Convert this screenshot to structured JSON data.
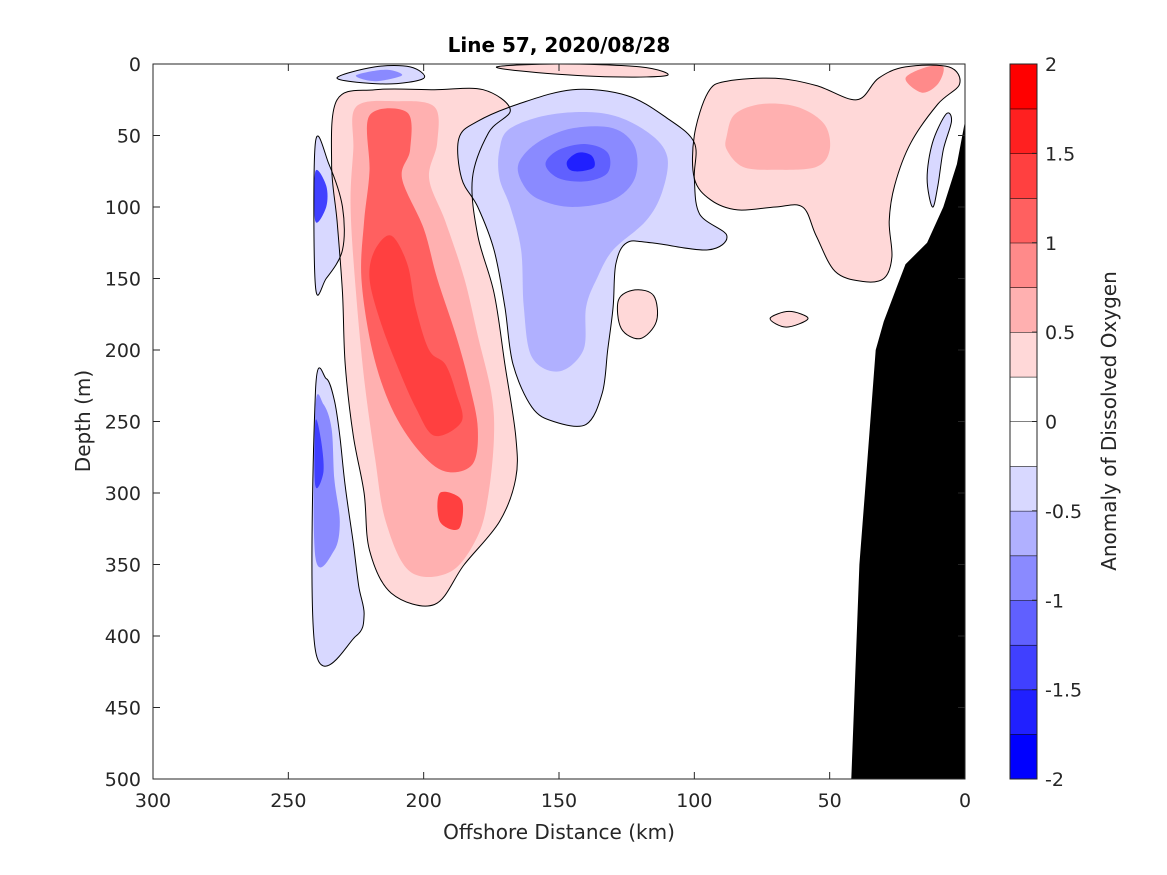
{
  "chart_data": {
    "type": "heatmap",
    "title": "Line 57, 2020/08/28",
    "xlabel": "Offshore Distance (km)",
    "ylabel": "Depth (m)",
    "xlim": [
      300,
      0
    ],
    "ylim": [
      0,
      500
    ],
    "x_ticks": [
      300,
      250,
      200,
      150,
      100,
      50,
      0
    ],
    "y_ticks": [
      0,
      50,
      100,
      150,
      200,
      250,
      300,
      350,
      400,
      450,
      500
    ],
    "colorbar": {
      "label": "Anomaly of Dissolved Oxygen",
      "limits": [
        -2,
        2
      ],
      "tick_values": [
        2,
        1.5,
        1,
        0.5,
        0,
        -0.5,
        -1,
        -1.5,
        -2
      ],
      "tick_labels": [
        "2",
        "1.5",
        "1",
        "0.5",
        "0",
        "-0.5",
        "-1",
        "-1.5",
        "-2"
      ],
      "levels": [
        {
          "lo": -2.0,
          "hi": -1.75,
          "color": "#0000ff"
        },
        {
          "lo": -1.75,
          "hi": -1.5,
          "color": "#2020ff"
        },
        {
          "lo": -1.5,
          "hi": -1.25,
          "color": "#4040ff"
        },
        {
          "lo": -1.25,
          "hi": -1.0,
          "color": "#6060ff"
        },
        {
          "lo": -1.0,
          "hi": -0.75,
          "color": "#8a8aff"
        },
        {
          "lo": -0.75,
          "hi": -0.5,
          "color": "#b0b0ff"
        },
        {
          "lo": -0.5,
          "hi": -0.25,
          "color": "#d8d8ff"
        },
        {
          "lo": -0.25,
          "hi": 0.0,
          "color": "#ffffff"
        },
        {
          "lo": 0.0,
          "hi": 0.25,
          "color": "#ffffff"
        },
        {
          "lo": 0.25,
          "hi": 0.5,
          "color": "#ffd8d8"
        },
        {
          "lo": 0.5,
          "hi": 0.75,
          "color": "#ffb0b0"
        },
        {
          "lo": 0.75,
          "hi": 1.0,
          "color": "#ff8a8a"
        },
        {
          "lo": 1.0,
          "hi": 1.25,
          "color": "#ff6060"
        },
        {
          "lo": 1.25,
          "hi": 1.5,
          "color": "#ff4040"
        },
        {
          "lo": 1.5,
          "hi": 1.75,
          "color": "#ff2020"
        },
        {
          "lo": 1.75,
          "hi": 2.0,
          "color": "#ff0000"
        }
      ]
    },
    "features": [
      {
        "name": "shelf-bathymetry",
        "value": null,
        "color": "#000000",
        "points": [
          [
            0,
            40
          ],
          [
            3,
            70
          ],
          [
            8,
            100
          ],
          [
            14,
            125
          ],
          [
            22,
            140
          ],
          [
            25,
            155
          ],
          [
            30,
            180
          ],
          [
            33,
            200
          ],
          [
            35,
            250
          ],
          [
            37,
            300
          ],
          [
            39,
            350
          ],
          [
            40,
            400
          ],
          [
            41,
            450
          ],
          [
            42,
            500
          ],
          [
            0,
            500
          ]
        ]
      },
      {
        "name": "coastal-anomaly",
        "value": -0.5,
        "points": [
          [
            5,
            40
          ],
          [
            8,
            60
          ],
          [
            10,
            85
          ],
          [
            12,
            100
          ],
          [
            14,
            80
          ],
          [
            12,
            55
          ],
          [
            7,
            35
          ]
        ]
      },
      {
        "name": "west-deep-negative",
        "value": -0.4,
        "points": [
          [
            240,
            230
          ],
          [
            236,
            220
          ],
          [
            233,
            235
          ],
          [
            231,
            260
          ],
          [
            229,
            295
          ],
          [
            226,
            335
          ],
          [
            224,
            365
          ],
          [
            222,
            385
          ],
          [
            225,
            400
          ],
          [
            240,
            410
          ]
        ]
      },
      {
        "name": "west-deep-negative",
        "value": -0.9,
        "points": [
          [
            240,
            240
          ],
          [
            237,
            238
          ],
          [
            234,
            255
          ],
          [
            233,
            290
          ],
          [
            231,
            320
          ],
          [
            233,
            340
          ],
          [
            240,
            345
          ]
        ]
      },
      {
        "name": "west-deep-negative",
        "value": -1.3,
        "points": [
          [
            240,
            250
          ],
          [
            238,
            262
          ],
          [
            237,
            285
          ],
          [
            240,
            295
          ]
        ]
      },
      {
        "name": "west-shallow-negative",
        "value": -0.5,
        "points": [
          [
            240,
            55
          ],
          [
            235,
            70
          ],
          [
            230,
            100
          ],
          [
            230,
            130
          ],
          [
            236,
            150
          ],
          [
            240,
            155
          ]
        ]
      },
      {
        "name": "west-shallow-negative",
        "value": -1.4,
        "points": [
          [
            240,
            75
          ],
          [
            236,
            85
          ],
          [
            236,
            100
          ],
          [
            240,
            110
          ]
        ]
      },
      {
        "name": "surface-negative-west",
        "value": -0.5,
        "points": [
          [
            232,
            10
          ],
          [
            218,
            2
          ],
          [
            205,
            2
          ],
          [
            200,
            10
          ],
          [
            214,
            14
          ]
        ]
      },
      {
        "name": "surface-negative-west",
        "value": -0.9,
        "points": [
          [
            225,
            8
          ],
          [
            214,
            4
          ],
          [
            208,
            8
          ],
          [
            218,
            12
          ]
        ]
      },
      {
        "name": "surface-positive-mid",
        "value": 0.4,
        "points": [
          [
            173,
            2
          ],
          [
            150,
            0
          ],
          [
            120,
            2
          ],
          [
            110,
            8
          ],
          [
            130,
            9
          ],
          [
            158,
            6
          ]
        ]
      },
      {
        "name": "warm-tongue",
        "value": 0.4,
        "points": [
          [
            232,
            25
          ],
          [
            218,
            18
          ],
          [
            196,
            18
          ],
          [
            178,
            18
          ],
          [
            168,
            32
          ],
          [
            176,
            48
          ],
          [
            182,
            80
          ],
          [
            180,
            120
          ],
          [
            174,
            160
          ],
          [
            170,
            210
          ],
          [
            166,
            260
          ],
          [
            166,
            290
          ],
          [
            172,
            320
          ],
          [
            185,
            350
          ],
          [
            196,
            378
          ],
          [
            212,
            370
          ],
          [
            220,
            340
          ],
          [
            222,
            300
          ],
          [
            226,
            260
          ],
          [
            229,
            210
          ],
          [
            230,
            160
          ],
          [
            232,
            110
          ],
          [
            234,
            70
          ]
        ]
      },
      {
        "name": "warm-tongue",
        "value": 0.7,
        "points": [
          [
            225,
            30
          ],
          [
            210,
            26
          ],
          [
            196,
            30
          ],
          [
            195,
            55
          ],
          [
            198,
            80
          ],
          [
            192,
            110
          ],
          [
            185,
            150
          ],
          [
            180,
            190
          ],
          [
            175,
            230
          ],
          [
            174,
            260
          ],
          [
            176,
            300
          ],
          [
            180,
            330
          ],
          [
            190,
            355
          ],
          [
            205,
            355
          ],
          [
            214,
            320
          ],
          [
            218,
            275
          ],
          [
            222,
            220
          ],
          [
            225,
            160
          ],
          [
            227,
            100
          ],
          [
            226,
            60
          ]
        ]
      },
      {
        "name": "warm-tongue",
        "value": 1.0,
        "points": [
          [
            220,
            36
          ],
          [
            206,
            34
          ],
          [
            205,
            60
          ],
          [
            208,
            80
          ],
          [
            200,
            115
          ],
          [
            195,
            150
          ],
          [
            188,
            190
          ],
          [
            183,
            225
          ],
          [
            180,
            255
          ],
          [
            182,
            280
          ],
          [
            192,
            285
          ],
          [
            202,
            270
          ],
          [
            212,
            240
          ],
          [
            219,
            200
          ],
          [
            223,
            150
          ],
          [
            222,
            110
          ],
          [
            220,
            75
          ]
        ]
      },
      {
        "name": "warm-tongue",
        "value": 1.25,
        "points": [
          [
            218,
            130
          ],
          [
            212,
            120
          ],
          [
            206,
            140
          ],
          [
            203,
            170
          ],
          [
            198,
            200
          ],
          [
            192,
            210
          ],
          [
            188,
            230
          ],
          [
            186,
            250
          ],
          [
            196,
            260
          ],
          [
            203,
            240
          ],
          [
            210,
            210
          ],
          [
            216,
            180
          ],
          [
            220,
            150
          ]
        ]
      },
      {
        "name": "warm-tongue",
        "value": 1.25,
        "points": [
          [
            194,
            300
          ],
          [
            186,
            305
          ],
          [
            187,
            325
          ],
          [
            194,
            320
          ]
        ]
      },
      {
        "name": "cold-eddy",
        "value": -0.4,
        "points": [
          [
            187,
            52
          ],
          [
            180,
            40
          ],
          [
            165,
            28
          ],
          [
            145,
            18
          ],
          [
            125,
            22
          ],
          [
            110,
            38
          ],
          [
            100,
            55
          ],
          [
            100,
            80
          ],
          [
            98,
            105
          ],
          [
            88,
            120
          ],
          [
            95,
            130
          ],
          [
            116,
            125
          ],
          [
            125,
            125
          ],
          [
            129,
            140
          ],
          [
            130,
            170
          ],
          [
            132,
            200
          ],
          [
            134,
            230
          ],
          [
            140,
            252
          ],
          [
            152,
            250
          ],
          [
            160,
            240
          ],
          [
            167,
            210
          ],
          [
            170,
            170
          ],
          [
            174,
            130
          ],
          [
            180,
            100
          ],
          [
            186,
            80
          ]
        ]
      },
      {
        "name": "cold-eddy",
        "value": -0.7,
        "points": [
          [
            172,
            60
          ],
          [
            168,
            45
          ],
          [
            152,
            35
          ],
          [
            132,
            35
          ],
          [
            117,
            48
          ],
          [
            110,
            65
          ],
          [
            112,
            90
          ],
          [
            118,
            110
          ],
          [
            130,
            130
          ],
          [
            136,
            150
          ],
          [
            140,
            170
          ],
          [
            141,
            200
          ],
          [
            150,
            215
          ],
          [
            160,
            205
          ],
          [
            163,
            170
          ],
          [
            164,
            130
          ],
          [
            168,
            100
          ],
          [
            172,
            80
          ]
        ]
      },
      {
        "name": "cold-eddy",
        "value": -1.0,
        "points": [
          [
            165,
            70
          ],
          [
            158,
            55
          ],
          [
            145,
            45
          ],
          [
            130,
            45
          ],
          [
            122,
            58
          ],
          [
            122,
            80
          ],
          [
            130,
            95
          ],
          [
            145,
            100
          ],
          [
            157,
            95
          ],
          [
            163,
            85
          ]
        ]
      },
      {
        "name": "cold-eddy",
        "value": -1.25,
        "points": [
          [
            155,
            70
          ],
          [
            150,
            60
          ],
          [
            140,
            56
          ],
          [
            132,
            62
          ],
          [
            132,
            76
          ],
          [
            140,
            82
          ],
          [
            150,
            80
          ]
        ]
      },
      {
        "name": "cold-eddy",
        "value": -1.75,
        "points": [
          [
            147,
            68
          ],
          [
            143,
            62
          ],
          [
            138,
            64
          ],
          [
            137,
            72
          ],
          [
            142,
            75
          ],
          [
            146,
            74
          ]
        ]
      },
      {
        "name": "northeast-positive",
        "value": 0.4,
        "points": [
          [
            95,
            20
          ],
          [
            88,
            12
          ],
          [
            70,
            10
          ],
          [
            55,
            15
          ],
          [
            40,
            25
          ],
          [
            32,
            10
          ],
          [
            22,
            2
          ],
          [
            6,
            2
          ],
          [
            2,
            14
          ],
          [
            10,
            28
          ],
          [
            20,
            55
          ],
          [
            26,
            85
          ],
          [
            28,
            110
          ],
          [
            27,
            135
          ],
          [
            30,
            150
          ],
          [
            38,
            152
          ],
          [
            48,
            145
          ],
          [
            55,
            120
          ],
          [
            60,
            100
          ],
          [
            70,
            100
          ],
          [
            84,
            102
          ],
          [
            94,
            95
          ],
          [
            100,
            80
          ],
          [
            100,
            50
          ]
        ]
      },
      {
        "name": "northeast-positive",
        "value": 0.7,
        "points": [
          [
            88,
            50
          ],
          [
            85,
            35
          ],
          [
            75,
            28
          ],
          [
            62,
            30
          ],
          [
            52,
            42
          ],
          [
            50,
            60
          ],
          [
            55,
            72
          ],
          [
            70,
            74
          ],
          [
            82,
            72
          ],
          [
            88,
            60
          ]
        ]
      },
      {
        "name": "northeast-positive",
        "value": 0.75,
        "points": [
          [
            22,
            10
          ],
          [
            14,
            2
          ],
          [
            8,
            2
          ],
          [
            10,
            14
          ],
          [
            16,
            20
          ]
        ]
      },
      {
        "name": "small-positive",
        "value": 0.4,
        "points": [
          [
            128,
            165
          ],
          [
            122,
            158
          ],
          [
            115,
            162
          ],
          [
            114,
            180
          ],
          [
            120,
            192
          ],
          [
            127,
            185
          ]
        ]
      },
      {
        "name": "small-positive",
        "value": 0.4,
        "points": [
          [
            72,
            178
          ],
          [
            65,
            173
          ],
          [
            58,
            178
          ],
          [
            66,
            184
          ]
        ]
      }
    ]
  }
}
